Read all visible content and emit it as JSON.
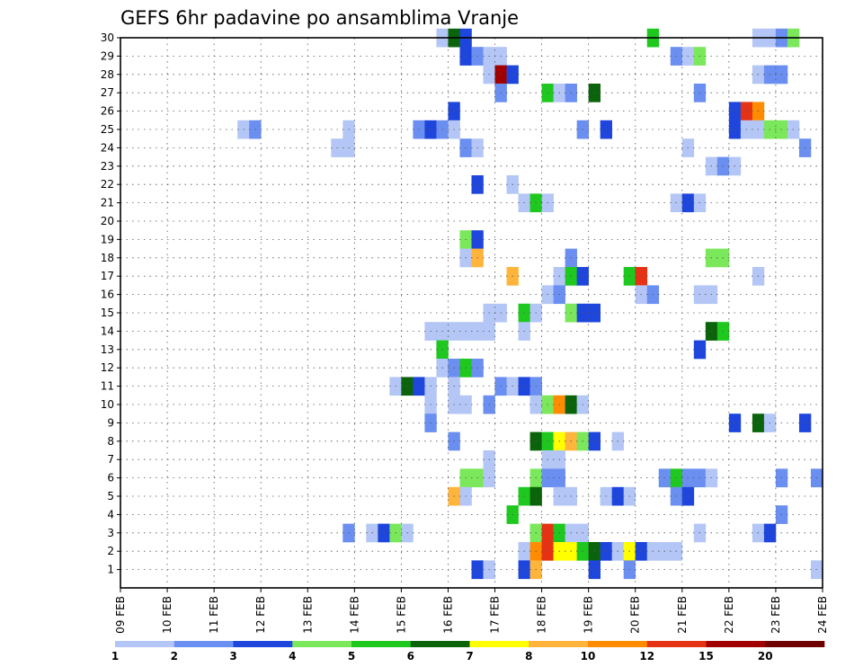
{
  "chart_data": {
    "type": "heatmap",
    "title": "GEFS 6hr padavine po ansamblima Vranje",
    "xlabel": "",
    "ylabel": "",
    "x_ticks": [
      "09 FEB",
      "10 FEB",
      "11 FEB",
      "12 FEB",
      "13 FEB",
      "14 FEB",
      "15 FEB",
      "16 FEB",
      "17 FEB",
      "18 FEB",
      "19 FEB",
      "20 FEB",
      "21 FEB",
      "22 FEB",
      "23 FEB",
      "24 FEB"
    ],
    "y_ticks": [
      1,
      2,
      3,
      4,
      5,
      6,
      7,
      8,
      9,
      10,
      11,
      12,
      13,
      14,
      15,
      16,
      17,
      18,
      19,
      20,
      21,
      22,
      23,
      24,
      25,
      26,
      27,
      28,
      29,
      30
    ],
    "x_range_days": [
      0,
      15
    ],
    "y_range": [
      0,
      30
    ],
    "grid": true,
    "colorbar": {
      "labels": [
        "1",
        "2",
        "3",
        "4",
        "5",
        "6",
        "7",
        "8",
        "10",
        "12",
        "15",
        "20"
      ],
      "colors": [
        "#b3c6f5",
        "#6b8ff0",
        "#1e46dc",
        "#7ae85a",
        "#1ec81e",
        "#0b640b",
        "#ffff00",
        "#ffb43c",
        "#ff8c00",
        "#e63214",
        "#a00000",
        "#6e0000"
      ]
    },
    "cells": [
      {
        "e": 30,
        "t": 6.75,
        "c": 1
      },
      {
        "e": 30,
        "t": 7.0,
        "c": 6
      },
      {
        "e": 30,
        "t": 7.25,
        "c": 3
      },
      {
        "e": 30,
        "t": 11.25,
        "c": 5
      },
      {
        "e": 30,
        "t": 13.5,
        "c": 1
      },
      {
        "e": 30,
        "t": 13.75,
        "c": 1
      },
      {
        "e": 30,
        "t": 14.0,
        "c": 2
      },
      {
        "e": 30,
        "t": 14.25,
        "c": 4
      },
      {
        "e": 29,
        "t": 7.25,
        "c": 3
      },
      {
        "e": 29,
        "t": 7.5,
        "c": 2
      },
      {
        "e": 29,
        "t": 7.75,
        "c": 1
      },
      {
        "e": 29,
        "t": 8.0,
        "c": 1
      },
      {
        "e": 29,
        "t": 11.75,
        "c": 2
      },
      {
        "e": 29,
        "t": 12.0,
        "c": 1
      },
      {
        "e": 29,
        "t": 12.25,
        "c": 4
      },
      {
        "e": 28,
        "t": 7.75,
        "c": 1
      },
      {
        "e": 28,
        "t": 8.0,
        "c": 11
      },
      {
        "e": 28,
        "t": 8.25,
        "c": 3
      },
      {
        "e": 28,
        "t": 13.5,
        "c": 1
      },
      {
        "e": 28,
        "t": 13.75,
        "c": 2
      },
      {
        "e": 28,
        "t": 14.0,
        "c": 2
      },
      {
        "e": 27,
        "t": 8.0,
        "c": 2
      },
      {
        "e": 27,
        "t": 9.0,
        "c": 5
      },
      {
        "e": 27,
        "t": 9.25,
        "c": 1
      },
      {
        "e": 27,
        "t": 9.5,
        "c": 2
      },
      {
        "e": 27,
        "t": 10.0,
        "c": 6
      },
      {
        "e": 27,
        "t": 12.25,
        "c": 2
      },
      {
        "e": 26,
        "t": 7.0,
        "c": 3
      },
      {
        "e": 26,
        "t": 13.0,
        "c": 3
      },
      {
        "e": 26,
        "t": 13.25,
        "c": 10
      },
      {
        "e": 26,
        "t": 13.5,
        "c": 9
      },
      {
        "e": 25,
        "t": 2.5,
        "c": 1
      },
      {
        "e": 25,
        "t": 2.75,
        "c": 2
      },
      {
        "e": 25,
        "t": 4.75,
        "c": 1
      },
      {
        "e": 25,
        "t": 6.25,
        "c": 2
      },
      {
        "e": 25,
        "t": 6.5,
        "c": 3
      },
      {
        "e": 25,
        "t": 6.75,
        "c": 2
      },
      {
        "e": 25,
        "t": 7.0,
        "c": 1
      },
      {
        "e": 25,
        "t": 9.75,
        "c": 2
      },
      {
        "e": 25,
        "t": 10.25,
        "c": 3
      },
      {
        "e": 25,
        "t": 13.0,
        "c": 3
      },
      {
        "e": 25,
        "t": 13.25,
        "c": 1
      },
      {
        "e": 25,
        "t": 13.5,
        "c": 1
      },
      {
        "e": 25,
        "t": 13.75,
        "c": 4
      },
      {
        "e": 25,
        "t": 14.0,
        "c": 4
      },
      {
        "e": 25,
        "t": 14.25,
        "c": 1
      },
      {
        "e": 24,
        "t": 4.5,
        "c": 1
      },
      {
        "e": 24,
        "t": 4.75,
        "c": 1
      },
      {
        "e": 24,
        "t": 7.25,
        "c": 2
      },
      {
        "e": 24,
        "t": 7.5,
        "c": 1
      },
      {
        "e": 24,
        "t": 12.0,
        "c": 1
      },
      {
        "e": 24,
        "t": 14.5,
        "c": 2
      },
      {
        "e": 23,
        "t": 12.5,
        "c": 1
      },
      {
        "e": 23,
        "t": 12.75,
        "c": 2
      },
      {
        "e": 23,
        "t": 13.0,
        "c": 1
      },
      {
        "e": 22,
        "t": 7.5,
        "c": 3
      },
      {
        "e": 22,
        "t": 8.25,
        "c": 1
      },
      {
        "e": 21,
        "t": 8.5,
        "c": 1
      },
      {
        "e": 21,
        "t": 8.75,
        "c": 5
      },
      {
        "e": 21,
        "t": 9.0,
        "c": 1
      },
      {
        "e": 21,
        "t": 11.75,
        "c": 1
      },
      {
        "e": 21,
        "t": 12.0,
        "c": 3
      },
      {
        "e": 21,
        "t": 12.25,
        "c": 1
      },
      {
        "e": 19,
        "t": 7.25,
        "c": 4
      },
      {
        "e": 19,
        "t": 7.5,
        "c": 3
      },
      {
        "e": 18,
        "t": 7.25,
        "c": 1
      },
      {
        "e": 18,
        "t": 7.5,
        "c": 8
      },
      {
        "e": 18,
        "t": 9.5,
        "c": 2
      },
      {
        "e": 18,
        "t": 12.5,
        "c": 4
      },
      {
        "e": 18,
        "t": 12.75,
        "c": 4
      },
      {
        "e": 17,
        "t": 8.25,
        "c": 8
      },
      {
        "e": 17,
        "t": 9.25,
        "c": 1
      },
      {
        "e": 17,
        "t": 9.5,
        "c": 5
      },
      {
        "e": 17,
        "t": 9.75,
        "c": 3
      },
      {
        "e": 17,
        "t": 10.75,
        "c": 5
      },
      {
        "e": 17,
        "t": 11.0,
        "c": 10
      },
      {
        "e": 17,
        "t": 13.5,
        "c": 1
      },
      {
        "e": 16,
        "t": 9.0,
        "c": 1
      },
      {
        "e": 16,
        "t": 9.25,
        "c": 2
      },
      {
        "e": 16,
        "t": 11.0,
        "c": 1
      },
      {
        "e": 16,
        "t": 11.25,
        "c": 2
      },
      {
        "e": 16,
        "t": 12.25,
        "c": 1
      },
      {
        "e": 16,
        "t": 12.5,
        "c": 1
      },
      {
        "e": 15,
        "t": 7.75,
        "c": 1
      },
      {
        "e": 15,
        "t": 8.0,
        "c": 1
      },
      {
        "e": 15,
        "t": 8.5,
        "c": 5
      },
      {
        "e": 15,
        "t": 8.75,
        "c": 1
      },
      {
        "e": 15,
        "t": 9.5,
        "c": 4
      },
      {
        "e": 15,
        "t": 9.75,
        "c": 3
      },
      {
        "e": 15,
        "t": 10.0,
        "c": 3
      },
      {
        "e": 14,
        "t": 6.5,
        "c": 1
      },
      {
        "e": 14,
        "t": 6.75,
        "c": 1
      },
      {
        "e": 14,
        "t": 7.0,
        "c": 1
      },
      {
        "e": 14,
        "t": 7.25,
        "c": 1
      },
      {
        "e": 14,
        "t": 7.5,
        "c": 1
      },
      {
        "e": 14,
        "t": 7.75,
        "c": 1
      },
      {
        "e": 14,
        "t": 8.5,
        "c": 1
      },
      {
        "e": 14,
        "t": 12.5,
        "c": 6
      },
      {
        "e": 14,
        "t": 12.75,
        "c": 5
      },
      {
        "e": 13,
        "t": 6.75,
        "c": 5
      },
      {
        "e": 13,
        "t": 12.25,
        "c": 3
      },
      {
        "e": 12,
        "t": 6.75,
        "c": 1
      },
      {
        "e": 12,
        "t": 7.0,
        "c": 2
      },
      {
        "e": 12,
        "t": 7.25,
        "c": 5
      },
      {
        "e": 12,
        "t": 7.5,
        "c": 2
      },
      {
        "e": 11,
        "t": 5.75,
        "c": 1
      },
      {
        "e": 11,
        "t": 6.0,
        "c": 6
      },
      {
        "e": 11,
        "t": 6.25,
        "c": 3
      },
      {
        "e": 11,
        "t": 6.5,
        "c": 1
      },
      {
        "e": 11,
        "t": 7.0,
        "c": 1
      },
      {
        "e": 11,
        "t": 8.0,
        "c": 2
      },
      {
        "e": 11,
        "t": 8.25,
        "c": 1
      },
      {
        "e": 11,
        "t": 8.5,
        "c": 3
      },
      {
        "e": 11,
        "t": 8.75,
        "c": 2
      },
      {
        "e": 10,
        "t": 6.5,
        "c": 1
      },
      {
        "e": 10,
        "t": 7.0,
        "c": 1
      },
      {
        "e": 10,
        "t": 7.25,
        "c": 1
      },
      {
        "e": 10,
        "t": 7.75,
        "c": 2
      },
      {
        "e": 10,
        "t": 8.75,
        "c": 1
      },
      {
        "e": 10,
        "t": 9.0,
        "c": 4
      },
      {
        "e": 10,
        "t": 9.25,
        "c": 9
      },
      {
        "e": 10,
        "t": 9.5,
        "c": 6
      },
      {
        "e": 10,
        "t": 9.75,
        "c": 1
      },
      {
        "e": 9,
        "t": 6.5,
        "c": 2
      },
      {
        "e": 9,
        "t": 13.0,
        "c": 3
      },
      {
        "e": 9,
        "t": 13.5,
        "c": 6
      },
      {
        "e": 9,
        "t": 13.75,
        "c": 1
      },
      {
        "e": 9,
        "t": 14.5,
        "c": 3
      },
      {
        "e": 8,
        "t": 7.0,
        "c": 2
      },
      {
        "e": 8,
        "t": 8.75,
        "c": 6
      },
      {
        "e": 8,
        "t": 9.0,
        "c": 5
      },
      {
        "e": 8,
        "t": 9.25,
        "c": 7
      },
      {
        "e": 8,
        "t": 9.5,
        "c": 8
      },
      {
        "e": 8,
        "t": 9.75,
        "c": 4
      },
      {
        "e": 8,
        "t": 10.0,
        "c": 3
      },
      {
        "e": 8,
        "t": 10.5,
        "c": 1
      },
      {
        "e": 7,
        "t": 7.75,
        "c": 1
      },
      {
        "e": 7,
        "t": 9.0,
        "c": 1
      },
      {
        "e": 7,
        "t": 9.25,
        "c": 1
      },
      {
        "e": 6,
        "t": 7.25,
        "c": 4
      },
      {
        "e": 6,
        "t": 7.5,
        "c": 4
      },
      {
        "e": 6,
        "t": 7.75,
        "c": 1
      },
      {
        "e": 6,
        "t": 8.75,
        "c": 4
      },
      {
        "e": 6,
        "t": 9.0,
        "c": 2
      },
      {
        "e": 6,
        "t": 9.25,
        "c": 2
      },
      {
        "e": 6,
        "t": 11.5,
        "c": 2
      },
      {
        "e": 6,
        "t": 11.75,
        "c": 5
      },
      {
        "e": 6,
        "t": 12.0,
        "c": 2
      },
      {
        "e": 6,
        "t": 12.25,
        "c": 2
      },
      {
        "e": 6,
        "t": 12.5,
        "c": 1
      },
      {
        "e": 6,
        "t": 14.0,
        "c": 2
      },
      {
        "e": 6,
        "t": 14.75,
        "c": 2
      },
      {
        "e": 5,
        "t": 7.0,
        "c": 8
      },
      {
        "e": 5,
        "t": 7.25,
        "c": 1
      },
      {
        "e": 5,
        "t": 8.5,
        "c": 5
      },
      {
        "e": 5,
        "t": 8.75,
        "c": 6
      },
      {
        "e": 5,
        "t": 9.25,
        "c": 1
      },
      {
        "e": 5,
        "t": 9.5,
        "c": 1
      },
      {
        "e": 5,
        "t": 10.25,
        "c": 1
      },
      {
        "e": 5,
        "t": 10.5,
        "c": 3
      },
      {
        "e": 5,
        "t": 10.75,
        "c": 1
      },
      {
        "e": 5,
        "t": 11.75,
        "c": 2
      },
      {
        "e": 5,
        "t": 12.0,
        "c": 3
      },
      {
        "e": 4,
        "t": 8.25,
        "c": 5
      },
      {
        "e": 4,
        "t": 14.0,
        "c": 2
      },
      {
        "e": 3,
        "t": 4.75,
        "c": 2
      },
      {
        "e": 3,
        "t": 5.25,
        "c": 1
      },
      {
        "e": 3,
        "t": 5.5,
        "c": 3
      },
      {
        "e": 3,
        "t": 5.75,
        "c": 4
      },
      {
        "e": 3,
        "t": 6.0,
        "c": 1
      },
      {
        "e": 3,
        "t": 8.75,
        "c": 4
      },
      {
        "e": 3,
        "t": 9.0,
        "c": 10
      },
      {
        "e": 3,
        "t": 9.25,
        "c": 5
      },
      {
        "e": 3,
        "t": 9.5,
        "c": 1
      },
      {
        "e": 3,
        "t": 9.75,
        "c": 1
      },
      {
        "e": 3,
        "t": 12.25,
        "c": 1
      },
      {
        "e": 3,
        "t": 13.5,
        "c": 1
      },
      {
        "e": 3,
        "t": 13.75,
        "c": 3
      },
      {
        "e": 2,
        "t": 8.5,
        "c": 1
      },
      {
        "e": 2,
        "t": 8.75,
        "c": 9
      },
      {
        "e": 2,
        "t": 9.0,
        "c": 10
      },
      {
        "e": 2,
        "t": 9.25,
        "c": 7
      },
      {
        "e": 2,
        "t": 9.5,
        "c": 7
      },
      {
        "e": 2,
        "t": 9.75,
        "c": 5
      },
      {
        "e": 2,
        "t": 10.0,
        "c": 6
      },
      {
        "e": 2,
        "t": 10.25,
        "c": 3
      },
      {
        "e": 2,
        "t": 10.5,
        "c": 1
      },
      {
        "e": 2,
        "t": 10.75,
        "c": 7
      },
      {
        "e": 2,
        "t": 11.0,
        "c": 3
      },
      {
        "e": 2,
        "t": 11.25,
        "c": 1
      },
      {
        "e": 2,
        "t": 11.5,
        "c": 1
      },
      {
        "e": 2,
        "t": 11.75,
        "c": 1
      },
      {
        "e": 1,
        "t": 7.5,
        "c": 3
      },
      {
        "e": 1,
        "t": 7.75,
        "c": 1
      },
      {
        "e": 1,
        "t": 8.5,
        "c": 3
      },
      {
        "e": 1,
        "t": 8.75,
        "c": 8
      },
      {
        "e": 1,
        "t": 10.0,
        "c": 3
      },
      {
        "e": 1,
        "t": 10.75,
        "c": 2
      },
      {
        "e": 1,
        "t": 14.75,
        "c": 1
      }
    ]
  }
}
